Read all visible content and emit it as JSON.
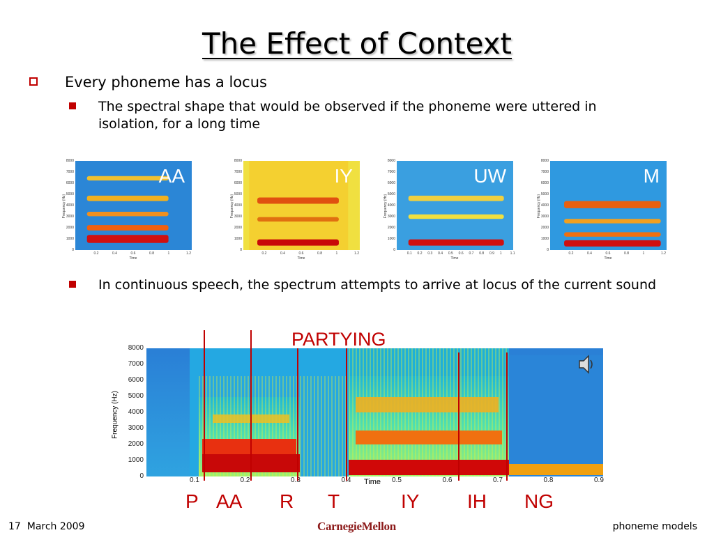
{
  "slide": {
    "title": "The Effect of Context",
    "bullet1": "Every phoneme has a locus",
    "bullet2": "The spectral shape that would be observed if the phoneme were uttered in isolation, for a long time",
    "bullet3": "In continuous speech, the spectrum attempts to arrive at locus of the current sound"
  },
  "small_spectrograms": [
    {
      "label": "AA",
      "ylabel": "Frequency (Hz)",
      "xlabel": "Time",
      "xticks": [
        "0.2",
        "0.4",
        "0.6",
        "0.8",
        "1",
        "1.2"
      ]
    },
    {
      "label": "IY",
      "ylabel": "Frequency (Hz)",
      "xlabel": "Time",
      "xticks": [
        "0.2",
        "0.4",
        "0.6",
        "0.8",
        "1",
        "1.2"
      ]
    },
    {
      "label": "UW",
      "ylabel": "Frequency (Hz)",
      "xlabel": "Time",
      "xticks": [
        "0.1",
        "0.2",
        "0.3",
        "0.4",
        "0.5",
        "0.6",
        "0.7",
        "0.8",
        "0.9",
        "1",
        "1.1"
      ]
    },
    {
      "label": "M",
      "ylabel": "Frequency (Hz)",
      "xlabel": "Time",
      "xticks": [
        "0.2",
        "0.4",
        "0.6",
        "0.8",
        "1",
        "1.2"
      ]
    }
  ],
  "small_yticks": [
    "8000",
    "7000",
    "6000",
    "5000",
    "4000",
    "3000",
    "2000",
    "1000",
    "0"
  ],
  "big_spectrogram": {
    "word": "PARTYING",
    "ylabel": "Frequency (Hz)",
    "xlabel": "Time",
    "yticks": [
      "8000",
      "7000",
      "6000",
      "5000",
      "4000",
      "3000",
      "2000",
      "1000",
      "0"
    ],
    "xticks": [
      "0.1",
      "0.2",
      "0.3",
      "0.4",
      "0.5",
      "0.6",
      "0.7",
      "0.8",
      "0.9"
    ],
    "phones": [
      "P",
      "AA",
      "R",
      "T",
      "IY",
      "IH",
      "NG"
    ]
  },
  "footer": {
    "date_num": "17",
    "date": "March 2009",
    "logo": "CarnegieMellon",
    "topic": "phoneme models"
  },
  "colors": {
    "accent": "#c00000",
    "logo": "#8c1a1a"
  }
}
